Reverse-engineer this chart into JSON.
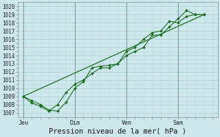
{
  "title": "",
  "xlabel": "Pression niveau de la mer( hPa )",
  "ylabel": "",
  "bg_color": "#cce8ec",
  "grid_color_major": "#aacccc",
  "grid_color_minor": "#bbdddd",
  "line_color": "#1a6b1a",
  "x_tick_labels": [
    "Jeu",
    "Dim",
    "Ven",
    "Sam"
  ],
  "x_tick_positions": [
    0.0,
    3.0,
    6.0,
    9.0
  ],
  "ylim": [
    1006.5,
    1020.5
  ],
  "xlim": [
    -0.3,
    11.3
  ],
  "yticks": [
    1007,
    1008,
    1009,
    1010,
    1011,
    1012,
    1013,
    1014,
    1015,
    1016,
    1017,
    1018,
    1019,
    1020
  ],
  "series1_x": [
    0,
    0.5,
    1.0,
    1.5,
    2.0,
    2.5,
    3.0,
    3.5,
    4.0,
    4.5,
    5.0,
    5.5,
    6.0,
    6.5,
    7.0,
    7.5,
    8.0,
    8.5,
    9.0,
    9.5,
    10.0,
    10.5
  ],
  "series1_y": [
    1009.0,
    1008.2,
    1007.8,
    1007.2,
    1008.0,
    1009.5,
    1010.5,
    1011.0,
    1011.8,
    1012.5,
    1012.5,
    1013.0,
    1014.0,
    1014.5,
    1015.0,
    1016.5,
    1016.5,
    1017.5,
    1018.5,
    1019.5,
    1019.0,
    1019.0
  ],
  "series2_x": [
    0,
    0.5,
    1.0,
    1.5,
    2.0,
    2.5,
    3.0,
    3.5,
    4.0,
    4.5,
    5.0,
    5.5,
    6.0,
    6.5,
    7.0,
    7.5,
    8.0,
    8.5,
    9.0,
    9.5,
    10.0,
    10.5
  ],
  "series2_y": [
    1009.0,
    1008.5,
    1008.0,
    1007.3,
    1007.2,
    1008.3,
    1010.0,
    1010.8,
    1012.5,
    1012.7,
    1012.8,
    1013.0,
    1014.5,
    1015.0,
    1016.0,
    1016.8,
    1017.0,
    1018.2,
    1018.0,
    1018.8,
    1019.0,
    1019.0
  ],
  "trend_x": [
    0,
    10.5
  ],
  "trend_y": [
    1009.0,
    1019.0
  ],
  "vline_color": "#7799aa",
  "vline_positions": [
    0.0,
    3.0,
    6.0,
    9.0
  ]
}
